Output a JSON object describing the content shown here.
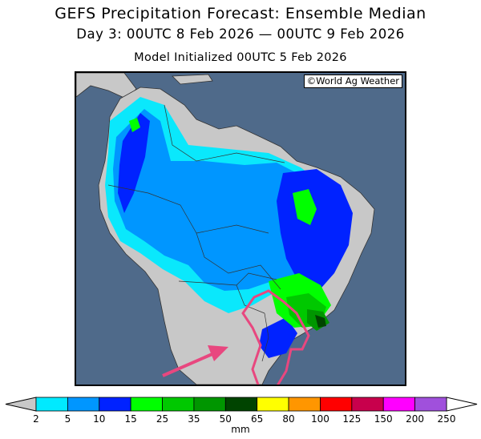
{
  "header": {
    "title": "GEFS Precipitation Forecast: Ensemble Median",
    "subtitle": "Day 3: 00UTC 8 Feb 2026 — 00UTC 9 Feb 2026",
    "init": "Model Initialized 00UTC 5 Feb 2026"
  },
  "map": {
    "credit": "©World Ag Weather",
    "ocean_color": "#4f6a8a",
    "land_color": "#c8c8c8",
    "annotation_color": "#e8477f"
  },
  "colorbar": {
    "unit": "mm",
    "ticks": [
      "2",
      "5",
      "10",
      "15",
      "25",
      "35",
      "50",
      "65",
      "80",
      "100",
      "125",
      "150",
      "200",
      "250"
    ],
    "colors": [
      "#00eaff",
      "#0096ff",
      "#0022ff",
      "#00ff00",
      "#00c800",
      "#009600",
      "#004400",
      "#ffff00",
      "#ff9600",
      "#ff0000",
      "#c8004c",
      "#ff00ff",
      "#a050dc"
    ],
    "under_color": "#c8c8c8",
    "over_color": "#ffffff"
  }
}
